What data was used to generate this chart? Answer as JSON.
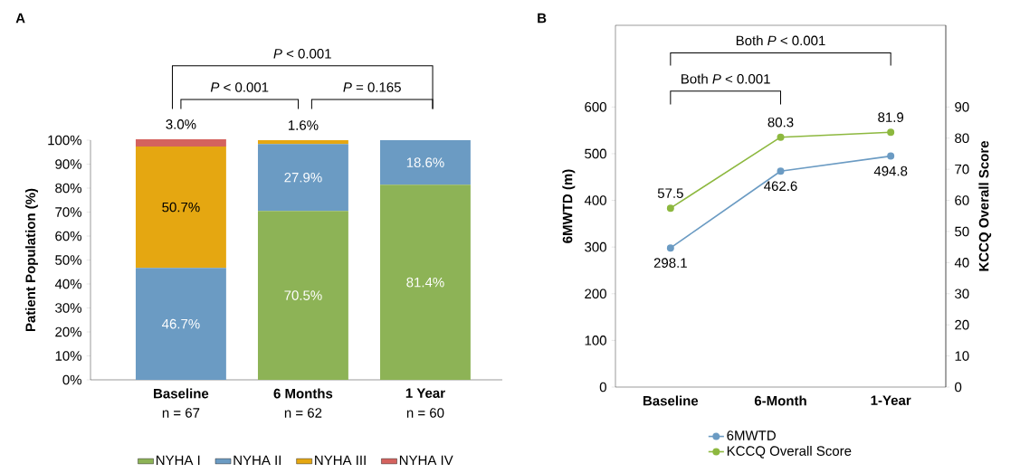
{
  "chart_data": [
    {
      "type": "bar",
      "title": "A",
      "stacked": true,
      "categories": [
        "Baseline",
        "6 Months",
        "1 Year"
      ],
      "ylabel": "Patient Population (%)",
      "ylim": [
        0,
        100
      ],
      "yticks": [
        {
          "value": 0,
          "label": "0%"
        },
        {
          "value": 10,
          "label": "10%"
        },
        {
          "value": 20,
          "label": "20%"
        },
        {
          "value": 30,
          "label": "30%"
        },
        {
          "value": 40,
          "label": "40%"
        },
        {
          "value": 50,
          "label": "50%"
        },
        {
          "value": 60,
          "label": "60%"
        },
        {
          "value": 70,
          "label": "70%"
        },
        {
          "value": 80,
          "label": "80%"
        },
        {
          "value": 90,
          "label": "90%"
        },
        {
          "value": 100,
          "label": "100%"
        }
      ],
      "series": [
        {
          "name": "NYHA I",
          "color": "#8db356",
          "values": [
            0,
            70.5,
            81.4
          ],
          "value_labels": [
            null,
            "70.5%",
            "81.4%"
          ]
        },
        {
          "name": "NYHA II",
          "color": "#6b9bc3",
          "values": [
            46.7,
            27.9,
            18.6
          ],
          "value_labels": [
            "46.7%",
            "27.9%",
            "18.6%"
          ]
        },
        {
          "name": "NYHA III",
          "color": "#e5a711",
          "values": [
            50.7,
            1.6,
            0
          ],
          "value_labels": [
            "50.7%",
            "1.6%",
            null
          ]
        },
        {
          "name": "NYHA IV",
          "color": "#d4625e",
          "values": [
            3.0,
            0,
            0
          ],
          "value_labels": [
            "3.0%",
            null,
            null
          ]
        }
      ],
      "legend": "bottom",
      "annotations": [
        "n = 67",
        "n = 62",
        "n = 60",
        "*P* < 0.001",
        "*P* < 0.001",
        "*P* = 0.165"
      ]
    },
    {
      "type": "line",
      "title": "B",
      "categories": [
        "Baseline",
        "6-Month",
        "1-Year"
      ],
      "ylabel": "6MWTD (m)",
      "y2label": "KCCQ Overall Score",
      "ylim": [
        0,
        775
      ],
      "yticks": [
        0,
        100,
        200,
        300,
        400,
        500,
        600
      ],
      "y2lim": [
        0,
        116.25
      ],
      "y2ticks": [
        0,
        10,
        20,
        30,
        40,
        50,
        60,
        70,
        80,
        90
      ],
      "marker": "circle",
      "data_labels": true,
      "legend": "bottom",
      "series": [
        {
          "name": "6MWTD",
          "color": "#6b9bc3",
          "values": [
            298.1,
            462.6,
            494.8
          ]
        },
        {
          "name": "KCCQ Overall Score",
          "color": "#8db83f",
          "values": [
            57.5,
            80.3,
            81.9
          ],
          "axis": "y2"
        }
      ],
      "annotations": [
        "Both *P* < 0.001",
        "Both *P* < 0.001"
      ]
    }
  ]
}
